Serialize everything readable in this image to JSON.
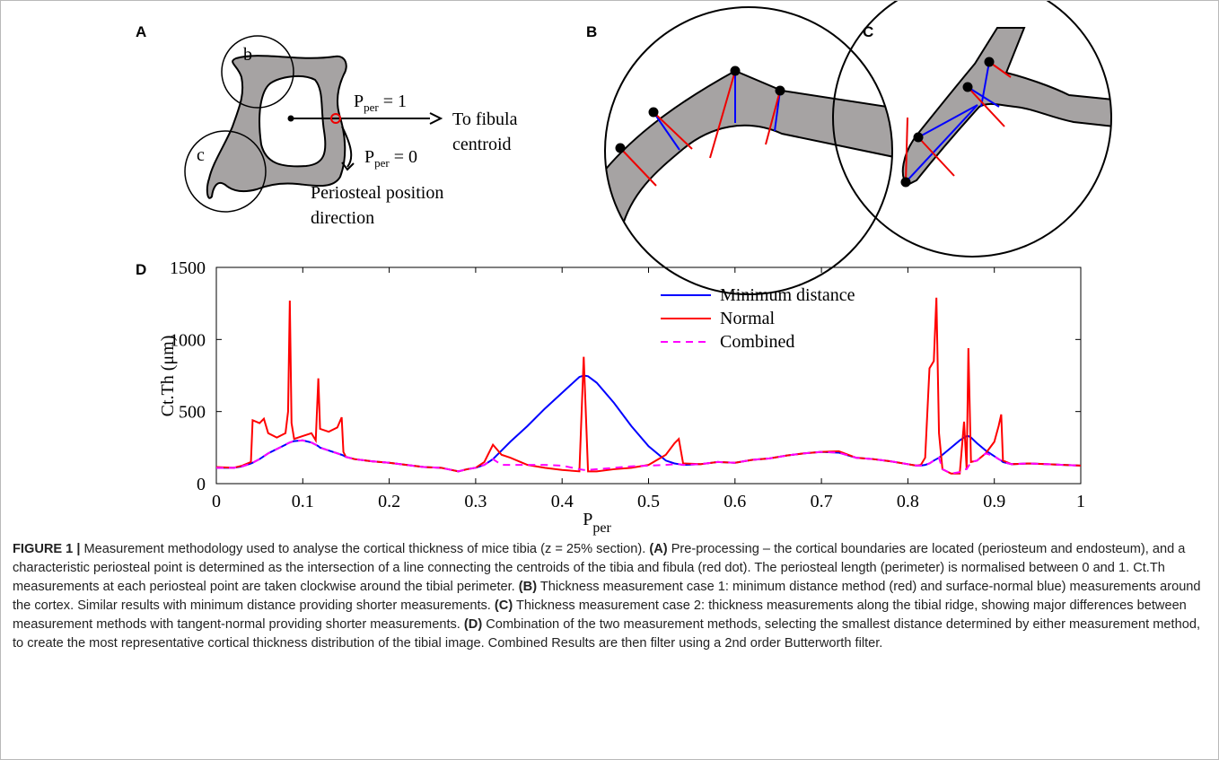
{
  "panels": {
    "a": {
      "label": "A",
      "circle_b": "b",
      "circle_c": "c",
      "p_one": {
        "symbol": "P",
        "subscript": "per",
        "rest": " = 1"
      },
      "p_zero": {
        "symbol": "P",
        "subscript": "per",
        "rest": " = 0"
      },
      "fibula": [
        "To fibula",
        "centroid"
      ],
      "direction": [
        "Periosteal position",
        "direction"
      ]
    },
    "b": {
      "label": "B"
    },
    "c": {
      "label": "C"
    },
    "d": {
      "label": "D"
    }
  },
  "chart_data": {
    "type": "line",
    "ylabel": "Ct.Th (μm)",
    "xlabel": {
      "symbol": "P",
      "subscript": "per"
    },
    "x": [
      0,
      0.02,
      0.03,
      0.04,
      0.042,
      0.05,
      0.055,
      0.06,
      0.07,
      0.08,
      0.083,
      0.085,
      0.087,
      0.09,
      0.1,
      0.11,
      0.115,
      0.118,
      0.12,
      0.13,
      0.14,
      0.145,
      0.147,
      0.15,
      0.16,
      0.18,
      0.2,
      0.22,
      0.24,
      0.26,
      0.28,
      0.29,
      0.3,
      0.31,
      0.32,
      0.33,
      0.34,
      0.36,
      0.38,
      0.4,
      0.42,
      0.425,
      0.43,
      0.44,
      0.46,
      0.48,
      0.5,
      0.52,
      0.53,
      0.535,
      0.54,
      0.56,
      0.58,
      0.6,
      0.62,
      0.64,
      0.66,
      0.68,
      0.7,
      0.72,
      0.74,
      0.76,
      0.78,
      0.8,
      0.81,
      0.815,
      0.82,
      0.825,
      0.83,
      0.833,
      0.836,
      0.84,
      0.85,
      0.86,
      0.865,
      0.868,
      0.87,
      0.873,
      0.88,
      0.89,
      0.9,
      0.905,
      0.908,
      0.91,
      0.92,
      0.94,
      0.96,
      0.98,
      1
    ],
    "series": [
      {
        "name": "Minimum distance",
        "color": "#0000ff",
        "dash": false,
        "values": [
          110,
          110,
          120,
          140,
          145,
          170,
          190,
          210,
          240,
          270,
          280,
          285,
          290,
          295,
          300,
          285,
          270,
          260,
          250,
          230,
          210,
          200,
          195,
          185,
          170,
          155,
          145,
          130,
          115,
          110,
          85,
          100,
          110,
          130,
          170,
          230,
          290,
          400,
          520,
          630,
          740,
          750,
          745,
          700,
          560,
          400,
          260,
          160,
          140,
          135,
          130,
          135,
          150,
          145,
          165,
          175,
          195,
          210,
          220,
          215,
          180,
          170,
          155,
          135,
          125,
          125,
          130,
          140,
          160,
          170,
          180,
          200,
          250,
          300,
          320,
          330,
          330,
          320,
          280,
          230,
          190,
          170,
          160,
          150,
          135,
          140,
          135,
          130,
          125
        ]
      },
      {
        "name": "Normal",
        "color": "#ff0000",
        "dash": false,
        "values": [
          115,
          110,
          125,
          150,
          440,
          420,
          450,
          350,
          320,
          350,
          500,
          1270,
          420,
          310,
          330,
          350,
          300,
          730,
          380,
          360,
          390,
          460,
          220,
          185,
          170,
          155,
          145,
          130,
          115,
          110,
          85,
          100,
          110,
          150,
          270,
          200,
          180,
          130,
          110,
          95,
          85,
          880,
          85,
          85,
          100,
          110,
          130,
          200,
          280,
          310,
          140,
          135,
          150,
          145,
          165,
          175,
          195,
          210,
          220,
          225,
          180,
          170,
          155,
          135,
          125,
          130,
          180,
          800,
          850,
          1290,
          350,
          100,
          70,
          70,
          430,
          100,
          940,
          150,
          160,
          210,
          290,
          400,
          480,
          160,
          135,
          140,
          135,
          130,
          125
        ]
      },
      {
        "name": "Combined",
        "color": "#ff00ff",
        "dash": true,
        "values": [
          110,
          110,
          120,
          140,
          145,
          170,
          190,
          210,
          240,
          270,
          280,
          285,
          290,
          295,
          300,
          285,
          270,
          260,
          250,
          230,
          210,
          200,
          195,
          185,
          170,
          155,
          145,
          130,
          115,
          110,
          85,
          100,
          110,
          130,
          170,
          130,
          130,
          130,
          130,
          125,
          100,
          95,
          95,
          100,
          110,
          120,
          125,
          130,
          135,
          135,
          130,
          135,
          150,
          145,
          165,
          175,
          195,
          210,
          220,
          215,
          180,
          170,
          155,
          135,
          125,
          125,
          130,
          140,
          160,
          170,
          180,
          100,
          70,
          80,
          100,
          100,
          120,
          150,
          160,
          210,
          190,
          170,
          160,
          150,
          135,
          140,
          135,
          130,
          125
        ]
      }
    ],
    "xlim": [
      0,
      1
    ],
    "xticks": [
      0,
      0.1,
      0.2,
      0.3,
      0.4,
      0.5,
      0.6,
      0.7,
      0.8,
      0.9,
      1
    ],
    "ylim": [
      0,
      1500
    ],
    "yticks": [
      0,
      500,
      1000,
      1500
    ],
    "legend": "top-center",
    "grid": false
  },
  "caption": {
    "segments": [
      {
        "text": "FIGURE 1 | ",
        "bold": true
      },
      {
        "text": "Measurement methodology used to analyse the cortical thickness of mice tibia (z = 25% section). ",
        "bold": false
      },
      {
        "text": "(A)",
        "bold": true
      },
      {
        "text": " Pre-processing – the cortical boundaries are located (periosteum and endosteum), and a characteristic periosteal point is determined as the intersection of a line connecting the centroids of the tibia and fibula (red dot). The periosteal length (perimeter) is normalised between 0 and 1. Ct.Th measurements at each periosteal point are taken clockwise around the tibial perimeter. ",
        "bold": false
      },
      {
        "text": "(B)",
        "bold": true
      },
      {
        "text": " Thickness measurement case 1: minimum distance method (red) and surface-normal blue) measurements around the cortex. Similar results with minimum distance providing shorter measurements. ",
        "bold": false
      },
      {
        "text": "(C)",
        "bold": true
      },
      {
        "text": " Thickness measurement case 2: thickness measurements along the tibial ridge, showing major differences between measurement methods with tangent-normal providing shorter measurements. ",
        "bold": false
      },
      {
        "text": "(D)",
        "bold": true
      },
      {
        "text": " Combination of the two measurement methods, selecting the smallest distance determined by either measurement method, to create the most representative cortical thickness distribution of the tibial image. Combined Results are then filter using a 2nd order Butterworth filter.",
        "bold": false
      }
    ]
  }
}
